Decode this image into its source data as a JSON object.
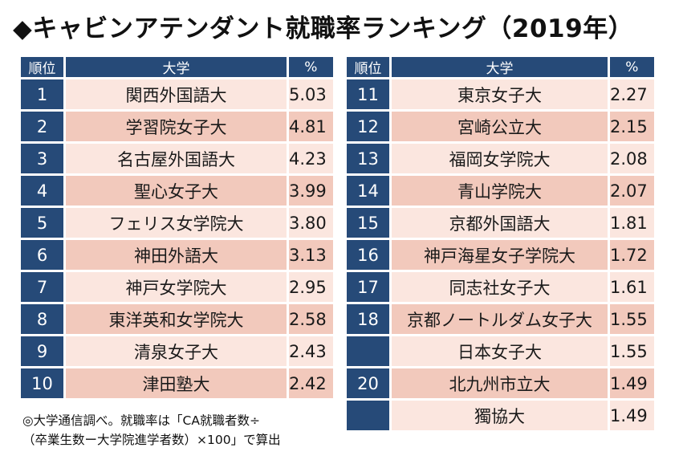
{
  "title": "◆キャビンアテンダント就職率ランキング（2019年）",
  "headers": {
    "rank": "順位",
    "university": "大学",
    "percent": "%"
  },
  "left_rows": [
    {
      "rank": "1",
      "name": "関西外国語大",
      "pct": "5.03"
    },
    {
      "rank": "2",
      "name": "学習院女子大",
      "pct": "4.81"
    },
    {
      "rank": "3",
      "name": "名古屋外国語大",
      "pct": "4.23"
    },
    {
      "rank": "4",
      "name": "聖心女子大",
      "pct": "3.99"
    },
    {
      "rank": "5",
      "name": "フェリス女学院大",
      "pct": "3.80"
    },
    {
      "rank": "6",
      "name": "神田外語大",
      "pct": "3.13"
    },
    {
      "rank": "7",
      "name": "神戸女学院大",
      "pct": "2.95"
    },
    {
      "rank": "8",
      "name": "東洋英和女学院大",
      "pct": "2.58"
    },
    {
      "rank": "9",
      "name": "清泉女子大",
      "pct": "2.43"
    },
    {
      "rank": "10",
      "name": "津田塾大",
      "pct": "2.42"
    }
  ],
  "right_rows": [
    {
      "rank": "11",
      "name": "東京女子大",
      "pct": "2.27"
    },
    {
      "rank": "12",
      "name": "宮崎公立大",
      "pct": "2.15"
    },
    {
      "rank": "13",
      "name": "福岡女学院大",
      "pct": "2.08"
    },
    {
      "rank": "14",
      "name": "青山学院大",
      "pct": "2.07"
    },
    {
      "rank": "15",
      "name": "京都外国語大",
      "pct": "1.81"
    },
    {
      "rank": "16",
      "name": "神戸海星女子学院大",
      "pct": "1.72"
    },
    {
      "rank": "17",
      "name": "同志社女子大",
      "pct": "1.61"
    },
    {
      "rank": "18",
      "name": "京都ノートルダム女子大",
      "pct": "1.55"
    },
    {
      "rank": "",
      "name": "日本女子大",
      "pct": "1.55"
    },
    {
      "rank": "20",
      "name": "北九州市立大",
      "pct": "1.49"
    },
    {
      "rank": "",
      "name": "獨協大",
      "pct": "1.49"
    }
  ],
  "note": {
    "line1": "◎大学通信調べ。就職率は「CA就職者数÷",
    "line2": "（卒業生数ー大学院進学者数）×100」で算出"
  },
  "colors": {
    "header_bg": "#264a78",
    "row_light": "#fbe6df",
    "row_dark": "#f2c9bc"
  }
}
